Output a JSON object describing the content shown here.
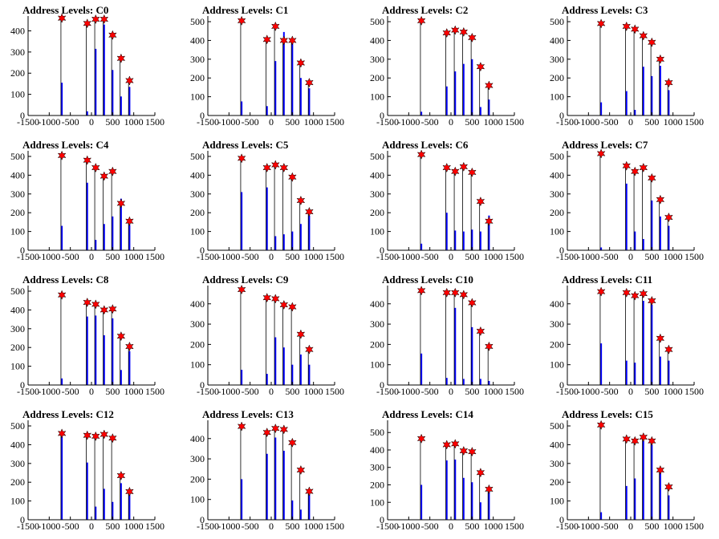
{
  "chart_data": [
    {
      "title": "Address Levels: C0",
      "type": "bar",
      "ylim": [
        0,
        470
      ],
      "yticks": [
        0,
        100,
        200,
        300,
        400
      ],
      "bins": [
        {
          "x": -700,
          "y": 155
        },
        {
          "x": -100,
          "y": 20
        },
        {
          "x": 100,
          "y": 315
        },
        {
          "x": 300,
          "y": 430
        },
        {
          "x": 500,
          "y": 215
        },
        {
          "x": 700,
          "y": 90
        },
        {
          "x": 900,
          "y": 135
        }
      ],
      "peaks": [
        {
          "x": -700,
          "y": 460
        },
        {
          "x": -100,
          "y": 435
        },
        {
          "x": 100,
          "y": 455
        },
        {
          "x": 300,
          "y": 455
        },
        {
          "x": 500,
          "y": 380
        },
        {
          "x": 700,
          "y": 270
        },
        {
          "x": 900,
          "y": 165
        }
      ]
    },
    {
      "title": "Address Levels: C1",
      "type": "bar",
      "ylim": [
        0,
        530
      ],
      "yticks": [
        0,
        100,
        200,
        300,
        400,
        500
      ],
      "bins": [
        {
          "x": -700,
          "y": 75
        },
        {
          "x": -100,
          "y": 50
        },
        {
          "x": 100,
          "y": 290
        },
        {
          "x": 300,
          "y": 445
        },
        {
          "x": 500,
          "y": 395
        },
        {
          "x": 700,
          "y": 200
        },
        {
          "x": 900,
          "y": 145
        }
      ],
      "peaks": [
        {
          "x": -700,
          "y": 505
        },
        {
          "x": -100,
          "y": 405
        },
        {
          "x": 100,
          "y": 475
        },
        {
          "x": 300,
          "y": 400
        },
        {
          "x": 500,
          "y": 400
        },
        {
          "x": 700,
          "y": 280
        },
        {
          "x": 900,
          "y": 175
        }
      ]
    },
    {
      "title": "Address Levels: C2",
      "type": "bar",
      "ylim": [
        0,
        530
      ],
      "yticks": [
        0,
        100,
        200,
        300,
        400,
        500
      ],
      "bins": [
        {
          "x": -700,
          "y": 20
        },
        {
          "x": -100,
          "y": 155
        },
        {
          "x": 100,
          "y": 235
        },
        {
          "x": 300,
          "y": 275
        },
        {
          "x": 500,
          "y": 300
        },
        {
          "x": 700,
          "y": 45
        },
        {
          "x": 900,
          "y": 85
        }
      ],
      "peaks": [
        {
          "x": -700,
          "y": 505
        },
        {
          "x": -100,
          "y": 440
        },
        {
          "x": 100,
          "y": 455
        },
        {
          "x": 300,
          "y": 445
        },
        {
          "x": 500,
          "y": 415
        },
        {
          "x": 700,
          "y": 260
        },
        {
          "x": 900,
          "y": 160
        }
      ]
    },
    {
      "title": "Address Levels: C3",
      "type": "bar",
      "ylim": [
        0,
        530
      ],
      "yticks": [
        0,
        100,
        200,
        300,
        400,
        500
      ],
      "bins": [
        {
          "x": -700,
          "y": 70
        },
        {
          "x": -100,
          "y": 130
        },
        {
          "x": 100,
          "y": 30
        },
        {
          "x": 300,
          "y": 260
        },
        {
          "x": 500,
          "y": 210
        },
        {
          "x": 700,
          "y": 265
        },
        {
          "x": 900,
          "y": 135
        }
      ],
      "peaks": [
        {
          "x": -700,
          "y": 490
        },
        {
          "x": -100,
          "y": 475
        },
        {
          "x": 100,
          "y": 460
        },
        {
          "x": 300,
          "y": 425
        },
        {
          "x": 500,
          "y": 390
        },
        {
          "x": 700,
          "y": 300
        },
        {
          "x": 900,
          "y": 175
        }
      ]
    },
    {
      "title": "Address Levels: C4",
      "type": "bar",
      "ylim": [
        0,
        530
      ],
      "yticks": [
        0,
        100,
        200,
        300,
        400,
        500
      ],
      "bins": [
        {
          "x": -700,
          "y": 130
        },
        {
          "x": -100,
          "y": 360
        },
        {
          "x": 100,
          "y": 55
        },
        {
          "x": 300,
          "y": 140
        },
        {
          "x": 500,
          "y": 180
        },
        {
          "x": 700,
          "y": 275
        },
        {
          "x": 900,
          "y": 135
        }
      ],
      "peaks": [
        {
          "x": -700,
          "y": 505
        },
        {
          "x": -100,
          "y": 480
        },
        {
          "x": 100,
          "y": 440
        },
        {
          "x": 300,
          "y": 395
        },
        {
          "x": 500,
          "y": 420
        },
        {
          "x": 700,
          "y": 250
        },
        {
          "x": 900,
          "y": 155
        }
      ]
    },
    {
      "title": "Address Levels: C5",
      "type": "bar",
      "ylim": [
        0,
        530
      ],
      "yticks": [
        0,
        100,
        200,
        300,
        400,
        500
      ],
      "bins": [
        {
          "x": -700,
          "y": 310
        },
        {
          "x": -100,
          "y": 335
        },
        {
          "x": 100,
          "y": 75
        },
        {
          "x": 300,
          "y": 85
        },
        {
          "x": 500,
          "y": 100
        },
        {
          "x": 700,
          "y": 140
        },
        {
          "x": 900,
          "y": 185
        }
      ],
      "peaks": [
        {
          "x": -700,
          "y": 490
        },
        {
          "x": -100,
          "y": 440
        },
        {
          "x": 100,
          "y": 455
        },
        {
          "x": 300,
          "y": 440
        },
        {
          "x": 500,
          "y": 390
        },
        {
          "x": 700,
          "y": 265
        },
        {
          "x": 900,
          "y": 205
        }
      ]
    },
    {
      "title": "Address Levels: C6",
      "type": "bar",
      "ylim": [
        0,
        530
      ],
      "yticks": [
        0,
        100,
        200,
        300,
        400,
        500
      ],
      "bins": [
        {
          "x": -700,
          "y": 35
        },
        {
          "x": -100,
          "y": 200
        },
        {
          "x": 100,
          "y": 105
        },
        {
          "x": 300,
          "y": 100
        },
        {
          "x": 500,
          "y": 110
        },
        {
          "x": 700,
          "y": 100
        },
        {
          "x": 900,
          "y": 185
        }
      ],
      "peaks": [
        {
          "x": -700,
          "y": 510
        },
        {
          "x": -100,
          "y": 440
        },
        {
          "x": 100,
          "y": 420
        },
        {
          "x": 300,
          "y": 445
        },
        {
          "x": 500,
          "y": 415
        },
        {
          "x": 700,
          "y": 260
        },
        {
          "x": 900,
          "y": 155
        }
      ]
    },
    {
      "title": "Address Levels: C7",
      "type": "bar",
      "ylim": [
        0,
        530
      ],
      "yticks": [
        0,
        100,
        200,
        300,
        400,
        500
      ],
      "bins": [
        {
          "x": -700,
          "y": 15
        },
        {
          "x": -100,
          "y": 355
        },
        {
          "x": 100,
          "y": 100
        },
        {
          "x": 300,
          "y": 60
        },
        {
          "x": 500,
          "y": 265
        },
        {
          "x": 700,
          "y": 180
        },
        {
          "x": 900,
          "y": 130
        }
      ],
      "peaks": [
        {
          "x": -700,
          "y": 515
        },
        {
          "x": -100,
          "y": 450
        },
        {
          "x": 100,
          "y": 420
        },
        {
          "x": 300,
          "y": 440
        },
        {
          "x": 500,
          "y": 385
        },
        {
          "x": 700,
          "y": 270
        },
        {
          "x": 900,
          "y": 175
        }
      ]
    },
    {
      "title": "Address Levels: C8",
      "type": "bar",
      "ylim": [
        0,
        530
      ],
      "yticks": [
        0,
        100,
        200,
        300,
        400,
        500
      ],
      "bins": [
        {
          "x": -700,
          "y": 35
        },
        {
          "x": -100,
          "y": 365
        },
        {
          "x": 100,
          "y": 370
        },
        {
          "x": 300,
          "y": 265
        },
        {
          "x": 500,
          "y": 355
        },
        {
          "x": 700,
          "y": 80
        },
        {
          "x": 900,
          "y": 180
        }
      ],
      "peaks": [
        {
          "x": -700,
          "y": 480
        },
        {
          "x": -100,
          "y": 440
        },
        {
          "x": 100,
          "y": 430
        },
        {
          "x": 300,
          "y": 400
        },
        {
          "x": 500,
          "y": 405
        },
        {
          "x": 700,
          "y": 260
        },
        {
          "x": 900,
          "y": 205
        }
      ]
    },
    {
      "title": "Address Levels: C9",
      "type": "bar",
      "ylim": [
        0,
        490
      ],
      "yticks": [
        0,
        100,
        200,
        300,
        400
      ],
      "bins": [
        {
          "x": -700,
          "y": 75
        },
        {
          "x": -100,
          "y": 55
        },
        {
          "x": 100,
          "y": 235
        },
        {
          "x": 300,
          "y": 185
        },
        {
          "x": 500,
          "y": 100
        },
        {
          "x": 700,
          "y": 150
        },
        {
          "x": 900,
          "y": 100
        }
      ],
      "peaks": [
        {
          "x": -700,
          "y": 470
        },
        {
          "x": -100,
          "y": 430
        },
        {
          "x": 100,
          "y": 425
        },
        {
          "x": 300,
          "y": 395
        },
        {
          "x": 500,
          "y": 385
        },
        {
          "x": 700,
          "y": 250
        },
        {
          "x": 900,
          "y": 175
        }
      ]
    },
    {
      "title": "Address Levels: C10",
      "type": "bar",
      "ylim": [
        0,
        490
      ],
      "yticks": [
        0,
        100,
        200,
        300,
        400
      ],
      "bins": [
        {
          "x": -700,
          "y": 155
        },
        {
          "x": -100,
          "y": 35
        },
        {
          "x": 100,
          "y": 380
        },
        {
          "x": 300,
          "y": 30
        },
        {
          "x": 500,
          "y": 285
        },
        {
          "x": 700,
          "y": 30
        },
        {
          "x": 900,
          "y": 20
        }
      ],
      "peaks": [
        {
          "x": -700,
          "y": 465
        },
        {
          "x": -100,
          "y": 455
        },
        {
          "x": 100,
          "y": 455
        },
        {
          "x": 300,
          "y": 445
        },
        {
          "x": 500,
          "y": 405
        },
        {
          "x": 700,
          "y": 265
        },
        {
          "x": 900,
          "y": 190
        }
      ]
    },
    {
      "title": "Address Levels: C11",
      "type": "bar",
      "ylim": [
        0,
        490
      ],
      "yticks": [
        0,
        100,
        200,
        300,
        400
      ],
      "bins": [
        {
          "x": -700,
          "y": 205
        },
        {
          "x": -100,
          "y": 120
        },
        {
          "x": 100,
          "y": 110
        },
        {
          "x": 300,
          "y": 415
        },
        {
          "x": 500,
          "y": 395
        },
        {
          "x": 700,
          "y": 140
        },
        {
          "x": 900,
          "y": 120
        }
      ],
      "peaks": [
        {
          "x": -700,
          "y": 460
        },
        {
          "x": -100,
          "y": 455
        },
        {
          "x": 100,
          "y": 440
        },
        {
          "x": 300,
          "y": 450
        },
        {
          "x": 500,
          "y": 415
        },
        {
          "x": 700,
          "y": 230
        },
        {
          "x": 900,
          "y": 175
        }
      ]
    },
    {
      "title": "Address Levels: C12",
      "type": "bar",
      "ylim": [
        0,
        530
      ],
      "yticks": [
        0,
        100,
        200,
        300,
        400,
        500
      ],
      "bins": [
        {
          "x": -700,
          "y": 470
        },
        {
          "x": -100,
          "y": 305
        },
        {
          "x": 100,
          "y": 70
        },
        {
          "x": 300,
          "y": 165
        },
        {
          "x": 500,
          "y": 95
        },
        {
          "x": 700,
          "y": 195
        },
        {
          "x": 900,
          "y": 155
        }
      ],
      "peaks": [
        {
          "x": -700,
          "y": 460
        },
        {
          "x": -100,
          "y": 450
        },
        {
          "x": 100,
          "y": 445
        },
        {
          "x": 300,
          "y": 455
        },
        {
          "x": 500,
          "y": 435
        },
        {
          "x": 700,
          "y": 235
        },
        {
          "x": 900,
          "y": 150
        }
      ]
    },
    {
      "title": "Address Levels: C13",
      "type": "bar",
      "ylim": [
        0,
        490
      ],
      "yticks": [
        0,
        100,
        200,
        300,
        400
      ],
      "bins": [
        {
          "x": -700,
          "y": 200
        },
        {
          "x": -100,
          "y": 325
        },
        {
          "x": 100,
          "y": 405
        },
        {
          "x": 300,
          "y": 340
        },
        {
          "x": 500,
          "y": 95
        },
        {
          "x": 700,
          "y": 50
        },
        {
          "x": 900,
          "y": 125
        }
      ],
      "peaks": [
        {
          "x": -700,
          "y": 460
        },
        {
          "x": -100,
          "y": 430
        },
        {
          "x": 100,
          "y": 450
        },
        {
          "x": 300,
          "y": 445
        },
        {
          "x": 500,
          "y": 380
        },
        {
          "x": 700,
          "y": 245
        },
        {
          "x": 900,
          "y": 140
        }
      ]
    },
    {
      "title": "Address Levels: C14",
      "type": "bar",
      "ylim": [
        0,
        570
      ],
      "yticks": [
        0,
        100,
        200,
        300,
        400,
        500
      ],
      "bins": [
        {
          "x": -700,
          "y": 200
        },
        {
          "x": -100,
          "y": 340
        },
        {
          "x": 100,
          "y": 345
        },
        {
          "x": 300,
          "y": 240
        },
        {
          "x": 500,
          "y": 215
        },
        {
          "x": 700,
          "y": 100
        },
        {
          "x": 900,
          "y": 175
        }
      ],
      "peaks": [
        {
          "x": -700,
          "y": 465
        },
        {
          "x": -100,
          "y": 430
        },
        {
          "x": 100,
          "y": 435
        },
        {
          "x": 300,
          "y": 395
        },
        {
          "x": 500,
          "y": 390
        },
        {
          "x": 700,
          "y": 270
        },
        {
          "x": 900,
          "y": 175
        }
      ]
    },
    {
      "title": "Address Levels: C15",
      "type": "bar",
      "ylim": [
        0,
        530
      ],
      "yticks": [
        0,
        100,
        200,
        300,
        400,
        500
      ],
      "bins": [
        {
          "x": -700,
          "y": 40
        },
        {
          "x": -100,
          "y": 180
        },
        {
          "x": 100,
          "y": 220
        },
        {
          "x": 300,
          "y": 420
        },
        {
          "x": 500,
          "y": 400
        },
        {
          "x": 700,
          "y": 265
        },
        {
          "x": 900,
          "y": 130
        }
      ],
      "peaks": [
        {
          "x": -700,
          "y": 505
        },
        {
          "x": -100,
          "y": 430
        },
        {
          "x": 100,
          "y": 420
        },
        {
          "x": 300,
          "y": 440
        },
        {
          "x": 500,
          "y": 420
        },
        {
          "x": 700,
          "y": 265
        },
        {
          "x": 900,
          "y": 175
        }
      ]
    }
  ],
  "axis": {
    "xlim": [
      -1500,
      1500
    ],
    "xticks": [
      -1500,
      -1000,
      -500,
      0,
      500,
      1000,
      1500
    ],
    "xtick_labels": [
      "-1500",
      "-1000",
      "-500",
      "0",
      "500",
      "1000",
      "1500"
    ]
  },
  "colors": {
    "bars": "#0000ff",
    "markers": "#ff0000",
    "marker_edge": "#000000",
    "axes": "#000000"
  }
}
